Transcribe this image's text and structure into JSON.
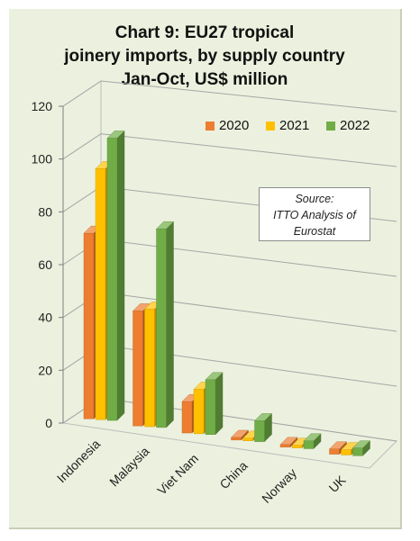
{
  "chart_data": {
    "type": "bar",
    "title_lines": [
      "Chart 9: EU27 tropical",
      "joinery imports, by supply country",
      "Jan-Oct, US$ million"
    ],
    "categories": [
      "Indonesia",
      "Malaysia",
      "Viet Nam",
      "China",
      "Norway",
      "UK"
    ],
    "series": [
      {
        "name": "2020",
        "color": "#ed7d31",
        "values": [
          71,
          44,
          12,
          1,
          1,
          2
        ]
      },
      {
        "name": "2021",
        "color": "#ffc000",
        "values": [
          96,
          45,
          17,
          1,
          1,
          2
        ]
      },
      {
        "name": "2022",
        "color": "#70ad47",
        "values": [
          108,
          76,
          21,
          8,
          3,
          3
        ]
      }
    ],
    "y_ticks": [
      0,
      20,
      40,
      60,
      80,
      100,
      120
    ],
    "ylim": [
      0,
      120
    ],
    "grid": true,
    "three_d": true,
    "legend": "top-right",
    "source_lines": [
      "Source:",
      "ITTO Analysis of",
      "Eurostat"
    ]
  }
}
